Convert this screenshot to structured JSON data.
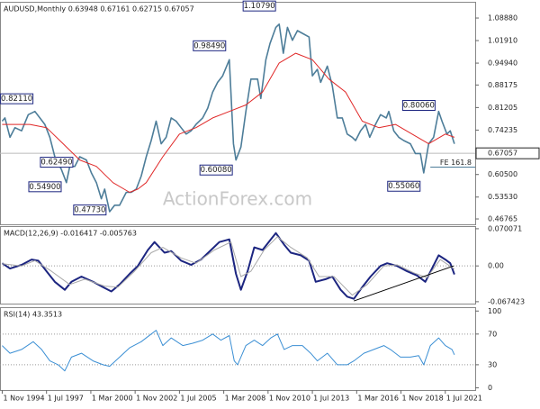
{
  "chart_data": [
    {
      "type": "line",
      "title": "AUDUSD,Monthly  0.63948 0.67161 0.62715 0.67057",
      "watermark": "ActionForex.com",
      "xlim": [
        1994.7,
        2023.3
      ],
      "ylim": [
        0.451,
        1.139
      ],
      "yticks": [
        {
          "value": 1.0888,
          "label": "1.08880"
        },
        {
          "value": 1.0191,
          "label": "1.01910"
        },
        {
          "value": 0.9494,
          "label": "0.94940"
        },
        {
          "value": 0.88175,
          "label": "0.88175"
        },
        {
          "value": 0.81205,
          "label": "0.81205"
        },
        {
          "value": 0.74235,
          "label": "0.74235"
        },
        {
          "value": 0.605,
          "label": "0.60500"
        },
        {
          "value": 0.5353,
          "label": "0.53530"
        },
        {
          "value": 0.46765,
          "label": "0.46765"
        }
      ],
      "last_price": 0.67057,
      "fe_line": {
        "label": "FE 161.8",
        "x": 2020.6,
        "value": 0.628
      },
      "series": [
        {
          "name": "AUDUSD",
          "color": "#4d7d99",
          "width": 1.6,
          "x": [
            1994.83,
            1995.0,
            1995.3,
            1995.6,
            1996.0,
            1996.4,
            1996.8,
            1997.1,
            1997.4,
            1997.7,
            1998.0,
            1998.4,
            1998.7,
            1998.9,
            1999.2,
            1999.5,
            1999.9,
            2000.2,
            2000.5,
            2000.8,
            2001.0,
            2001.3,
            2001.6,
            2001.9,
            2002.3,
            2002.6,
            2002.9,
            2003.2,
            2003.5,
            2003.8,
            2004.1,
            2004.4,
            2004.7,
            2005.0,
            2005.3,
            2005.6,
            2005.9,
            2006.2,
            2006.5,
            2006.9,
            2007.2,
            2007.5,
            2007.8,
            2008.1,
            2008.5,
            2008.75,
            2008.9,
            2009.2,
            2009.5,
            2009.8,
            2010.2,
            2010.4,
            2010.7,
            2010.95,
            2011.3,
            2011.5,
            2011.75,
            2012.0,
            2012.3,
            2012.6,
            2012.95,
            2013.3,
            2013.5,
            2013.8,
            2014.0,
            2014.4,
            2014.7,
            2015.0,
            2015.3,
            2015.6,
            2015.9,
            2016.1,
            2016.4,
            2016.7,
            2016.95,
            2017.3,
            2017.6,
            2017.95,
            2018.1,
            2018.4,
            2018.7,
            2019.0,
            2019.4,
            2019.7,
            2020.0,
            2020.2,
            2020.5,
            2020.8,
            2021.1,
            2021.3,
            2021.6,
            2021.8,
            2022.05
          ],
          "values": [
            0.77,
            0.78,
            0.72,
            0.75,
            0.74,
            0.79,
            0.8,
            0.78,
            0.76,
            0.72,
            0.66,
            0.62,
            0.58,
            0.63,
            0.63,
            0.66,
            0.65,
            0.61,
            0.58,
            0.53,
            0.56,
            0.49,
            0.51,
            0.51,
            0.55,
            0.55,
            0.56,
            0.6,
            0.66,
            0.71,
            0.77,
            0.7,
            0.72,
            0.78,
            0.77,
            0.75,
            0.73,
            0.74,
            0.76,
            0.78,
            0.81,
            0.86,
            0.89,
            0.91,
            0.96,
            0.7,
            0.65,
            0.69,
            0.8,
            0.9,
            0.9,
            0.84,
            0.96,
            1.01,
            1.06,
            1.07,
            0.98,
            1.06,
            1.02,
            1.05,
            1.04,
            1.03,
            0.91,
            0.93,
            0.89,
            0.94,
            0.88,
            0.78,
            0.78,
            0.73,
            0.72,
            0.71,
            0.74,
            0.76,
            0.72,
            0.76,
            0.79,
            0.78,
            0.8,
            0.74,
            0.72,
            0.71,
            0.7,
            0.67,
            0.67,
            0.61,
            0.7,
            0.72,
            0.8,
            0.77,
            0.73,
            0.74,
            0.7
          ]
        },
        {
          "name": "MA",
          "color": "#e02828",
          "width": 1,
          "x": [
            1994.83,
            1995.5,
            1996.5,
            1997.5,
            1998.5,
            1999.5,
            2000.5,
            2001.5,
            2002.5,
            2003.0,
            2003.5,
            2004.5,
            2005.5,
            2006.5,
            2007.5,
            2008.5,
            2009.5,
            2010.5,
            2011.5,
            2012.5,
            2013.5,
            2014.5,
            2015.5,
            2016.5,
            2017.5,
            2018.5,
            2019.5,
            2020.5,
            2021.5,
            2022.05
          ],
          "values": [
            0.76,
            0.76,
            0.76,
            0.75,
            0.7,
            0.65,
            0.63,
            0.58,
            0.55,
            0.56,
            0.58,
            0.66,
            0.73,
            0.75,
            0.78,
            0.8,
            0.82,
            0.86,
            0.95,
            0.98,
            0.96,
            0.9,
            0.86,
            0.77,
            0.75,
            0.76,
            0.73,
            0.7,
            0.73,
            0.72
          ]
        }
      ],
      "annotations": [
        {
          "label": "0.82110",
          "x": 1996.9,
          "y": 0.8211
        },
        {
          "label": "0.62490",
          "x": 1999.3,
          "y": 0.6249
        },
        {
          "label": "0.54900",
          "x": 1998.6,
          "y": 0.549
        },
        {
          "label": "0.47730",
          "x": 2001.3,
          "y": 0.4773
        },
        {
          "label": "0.98490",
          "x": 2008.5,
          "y": 0.9849
        },
        {
          "label": "0.60080",
          "x": 2008.9,
          "y": 0.6008
        },
        {
          "label": "1.10790",
          "x": 2011.5,
          "y": 1.1079
        },
        {
          "label": "0.55060",
          "x": 2020.2,
          "y": 0.5506
        },
        {
          "label": "0.80060",
          "x": 2021.1,
          "y": 0.8006
        }
      ]
    },
    {
      "type": "line",
      "title": "MACD(12,26,9) -0.016417 -0.005763",
      "xlim": [
        1994.7,
        2023.3
      ],
      "ylim": [
        -0.071,
        0.075
      ],
      "yticks": [
        {
          "value": 0.070071,
          "label": "0.070071"
        },
        {
          "value": 0,
          "label": "0.00"
        },
        {
          "value": -0.067423,
          "label": "-0.067423"
        }
      ],
      "reference_lines": [
        0
      ],
      "trendline": {
        "x": [
          2016.0,
          2022.0
        ],
        "values": [
          -0.066,
          0.0
        ]
      },
      "series": [
        {
          "name": "MACD",
          "color": "#1c2580",
          "width": 2,
          "x": [
            1994.83,
            1995.3,
            1996.0,
            1996.6,
            1997.0,
            1997.5,
            1998.0,
            1998.6,
            1999.0,
            1999.6,
            2000.3,
            2000.9,
            2001.4,
            2001.9,
            2002.5,
            2003.0,
            2003.6,
            2004.0,
            2004.6,
            2005.0,
            2005.6,
            2006.2,
            2006.8,
            2007.4,
            2007.9,
            2008.5,
            2008.9,
            2009.2,
            2009.6,
            2010.0,
            2010.5,
            2011.0,
            2011.3,
            2011.8,
            2012.2,
            2012.8,
            2013.3,
            2013.7,
            2014.3,
            2014.7,
            2015.2,
            2015.6,
            2016.0,
            2016.5,
            2017.0,
            2017.6,
            2018.0,
            2018.6,
            2019.2,
            2019.8,
            2020.3,
            2020.7,
            2021.1,
            2021.5,
            2021.8,
            2022.05
          ],
          "values": [
            0.005,
            -0.005,
            0.002,
            0.012,
            0.01,
            -0.01,
            -0.03,
            -0.045,
            -0.03,
            -0.02,
            -0.03,
            -0.04,
            -0.048,
            -0.035,
            -0.015,
            0.0,
            0.03,
            0.045,
            0.025,
            0.028,
            0.01,
            0.002,
            0.012,
            0.03,
            0.045,
            0.05,
            -0.015,
            -0.045,
            -0.01,
            0.035,
            0.03,
            0.05,
            0.062,
            0.04,
            0.025,
            0.02,
            0.01,
            -0.03,
            -0.025,
            -0.02,
            -0.045,
            -0.058,
            -0.062,
            -0.04,
            -0.02,
            0.0,
            0.005,
            0.0,
            -0.01,
            -0.018,
            -0.03,
            -0.005,
            0.02,
            0.012,
            0.005,
            -0.016
          ]
        },
        {
          "name": "Signal",
          "color": "#a8a8a8",
          "width": 1,
          "x": [
            1994.83,
            1996.0,
            1996.8,
            1997.8,
            1998.9,
            1999.8,
            2001.0,
            2001.8,
            2002.8,
            2003.8,
            2004.5,
            2005.6,
            2006.5,
            2007.6,
            2008.6,
            2009.2,
            2009.8,
            2010.6,
            2011.4,
            2012.2,
            2013.2,
            2013.9,
            2014.8,
            2015.9,
            2016.8,
            2017.8,
            2018.6,
            2019.6,
            2020.4,
            2021.2,
            2022.05
          ],
          "values": [
            0.004,
            0.0,
            0.01,
            -0.01,
            -0.035,
            -0.025,
            -0.038,
            -0.04,
            -0.01,
            0.025,
            0.035,
            0.015,
            0.005,
            0.03,
            0.045,
            -0.02,
            -0.01,
            0.03,
            0.055,
            0.035,
            0.015,
            -0.02,
            -0.02,
            -0.055,
            -0.035,
            0.0,
            0.002,
            -0.013,
            -0.022,
            0.012,
            -0.006
          ]
        }
      ]
    },
    {
      "type": "line",
      "title": "RSI(14) 43.3513",
      "xlim": [
        1994.7,
        2023.3
      ],
      "ylim": [
        -3,
        105
      ],
      "yticks": [
        100,
        70,
        30,
        0
      ],
      "reference_lines": [
        70,
        30
      ],
      "xticks": [
        {
          "value": 1994.833,
          "label": "1 Nov 1994"
        },
        {
          "value": 1997.5,
          "label": "1 Jul 1997"
        },
        {
          "value": 2000.167,
          "label": "1 Mar 2000"
        },
        {
          "value": 2002.833,
          "label": "1 Nov 2002"
        },
        {
          "value": 2005.5,
          "label": "1 Jul 2005"
        },
        {
          "value": 2008.167,
          "label": "1 Mar 2008"
        },
        {
          "value": 2010.833,
          "label": "1 Nov 2010"
        },
        {
          "value": 2013.5,
          "label": "1 Jul 2013"
        },
        {
          "value": 2016.167,
          "label": "1 Mar 2016"
        },
        {
          "value": 2018.833,
          "label": "1 Nov 2018"
        },
        {
          "value": 2021.5,
          "label": "1 Jul 2021"
        }
      ],
      "series": [
        {
          "name": "RSI",
          "color": "#3b8fd4",
          "width": 1,
          "x": [
            1994.83,
            1995.3,
            1996.0,
            1996.7,
            1997.2,
            1997.7,
            1998.2,
            1998.6,
            1999.0,
            1999.6,
            2000.3,
            2000.9,
            2001.3,
            2001.9,
            2002.5,
            2003.2,
            2003.8,
            2004.1,
            2004.5,
            2005.0,
            2005.7,
            2006.3,
            2006.9,
            2007.5,
            2008.0,
            2008.5,
            2008.8,
            2009.0,
            2009.5,
            2010.0,
            2010.5,
            2011.0,
            2011.4,
            2011.8,
            2012.3,
            2012.9,
            2013.4,
            2013.8,
            2014.4,
            2015.0,
            2015.6,
            2016.0,
            2016.6,
            2017.2,
            2017.8,
            2018.2,
            2018.8,
            2019.4,
            2019.9,
            2020.2,
            2020.6,
            2021.1,
            2021.5,
            2021.9,
            2022.05
          ],
          "values": [
            55,
            45,
            50,
            60,
            50,
            35,
            30,
            22,
            40,
            45,
            35,
            30,
            28,
            40,
            52,
            60,
            70,
            75,
            55,
            65,
            55,
            58,
            62,
            70,
            62,
            68,
            35,
            30,
            55,
            62,
            55,
            65,
            70,
            50,
            55,
            55,
            45,
            35,
            45,
            30,
            30,
            35,
            45,
            50,
            55,
            50,
            40,
            40,
            42,
            30,
            55,
            65,
            55,
            50,
            43
          ]
        }
      ]
    }
  ]
}
